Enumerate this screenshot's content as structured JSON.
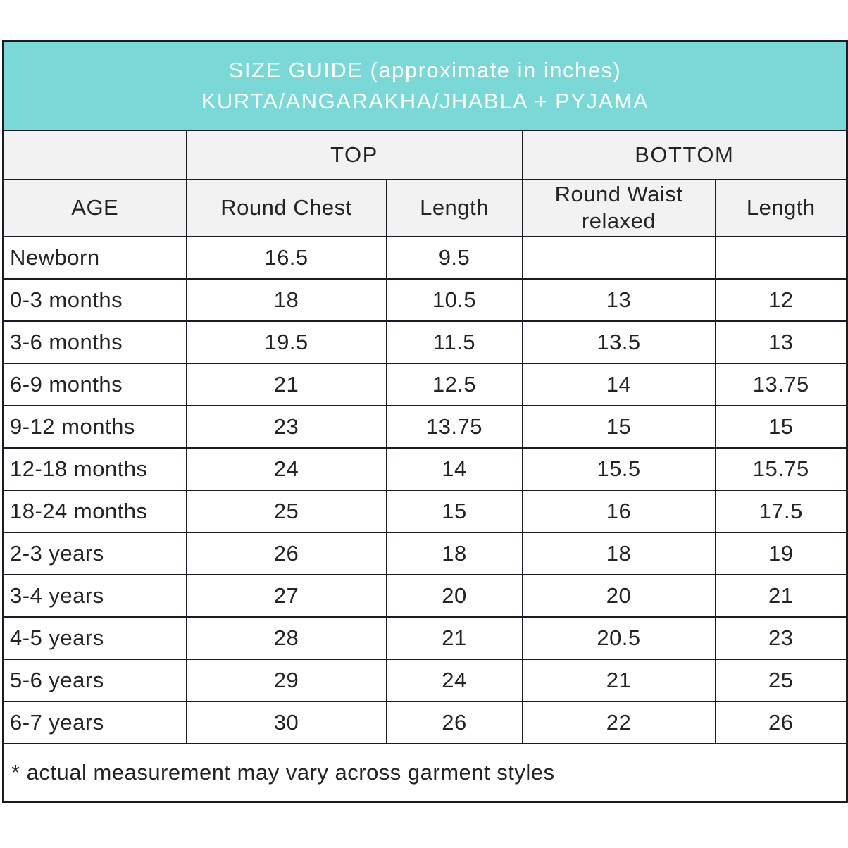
{
  "title": {
    "line1": "SIZE GUIDE (approximate in inches)",
    "line2": "KURTA/ANGARAKHA/JHABLA + PYJAMA"
  },
  "table": {
    "group_headers": {
      "top": "TOP",
      "bottom": "BOTTOM"
    },
    "column_headers": {
      "age": "AGE",
      "round_chest": "Round Chest",
      "top_length": "Length",
      "round_waist": "Round Waist relaxed",
      "bottom_length": "Length"
    },
    "rows": [
      {
        "age": "Newborn",
        "round_chest": "16.5",
        "top_length": "9.5",
        "round_waist": "",
        "bottom_length": ""
      },
      {
        "age": "0-3 months",
        "round_chest": "18",
        "top_length": "10.5",
        "round_waist": "13",
        "bottom_length": "12"
      },
      {
        "age": "3-6 months",
        "round_chest": "19.5",
        "top_length": "11.5",
        "round_waist": "13.5",
        "bottom_length": "13"
      },
      {
        "age": "6-9 months",
        "round_chest": "21",
        "top_length": "12.5",
        "round_waist": "14",
        "bottom_length": "13.75"
      },
      {
        "age": "9-12 months",
        "round_chest": "23",
        "top_length": "13.75",
        "round_waist": "15",
        "bottom_length": "15"
      },
      {
        "age": "12-18 months",
        "round_chest": "24",
        "top_length": "14",
        "round_waist": "15.5",
        "bottom_length": "15.75"
      },
      {
        "age": "18-24 months",
        "round_chest": "25",
        "top_length": "15",
        "round_waist": "16",
        "bottom_length": "17.5"
      },
      {
        "age": "2-3 years",
        "round_chest": "26",
        "top_length": "18",
        "round_waist": "18",
        "bottom_length": "19"
      },
      {
        "age": "3-4 years",
        "round_chest": "27",
        "top_length": "20",
        "round_waist": "20",
        "bottom_length": "21"
      },
      {
        "age": "4-5 years",
        "round_chest": "28",
        "top_length": "21",
        "round_waist": "20.5",
        "bottom_length": "23"
      },
      {
        "age": "5-6 years",
        "round_chest": "29",
        "top_length": "24",
        "round_waist": "21",
        "bottom_length": "25"
      },
      {
        "age": "6-7 years",
        "round_chest": "30",
        "top_length": "26",
        "round_waist": "22",
        "bottom_length": "26"
      }
    ],
    "footnote": "* actual measurement may vary across garment styles"
  },
  "colors": {
    "accent": "#7ad8d6",
    "header_bg": "#f2f2f2",
    "border": "#1b1b24",
    "text": "#242428",
    "banner_text": "#ffffff"
  },
  "chart_data": {
    "type": "table",
    "title": "SIZE GUIDE (approximate in inches) KURTA/ANGARAKHA/JHABLA + PYJAMA",
    "column_groups": [
      "",
      "TOP",
      "TOP",
      "BOTTOM",
      "BOTTOM"
    ],
    "columns": [
      "AGE",
      "Round Chest",
      "Length",
      "Round Waist relaxed",
      "Length"
    ],
    "rows": [
      [
        "Newborn",
        16.5,
        9.5,
        null,
        null
      ],
      [
        "0-3 months",
        18,
        10.5,
        13,
        12
      ],
      [
        "3-6 months",
        19.5,
        11.5,
        13.5,
        13
      ],
      [
        "6-9 months",
        21,
        12.5,
        14,
        13.75
      ],
      [
        "9-12 months",
        23,
        13.75,
        15,
        15
      ],
      [
        "12-18 months",
        24,
        14,
        15.5,
        15.75
      ],
      [
        "18-24 months",
        25,
        15,
        16,
        17.5
      ],
      [
        "2-3 years",
        26,
        18,
        18,
        19
      ],
      [
        "3-4 years",
        27,
        20,
        20,
        21
      ],
      [
        "4-5 years",
        28,
        21,
        20.5,
        23
      ],
      [
        "5-6 years",
        29,
        24,
        21,
        25
      ],
      [
        "6-7 years",
        30,
        26,
        22,
        26
      ]
    ],
    "footnote": "* actual measurement may vary across garment styles",
    "units": "inches"
  }
}
